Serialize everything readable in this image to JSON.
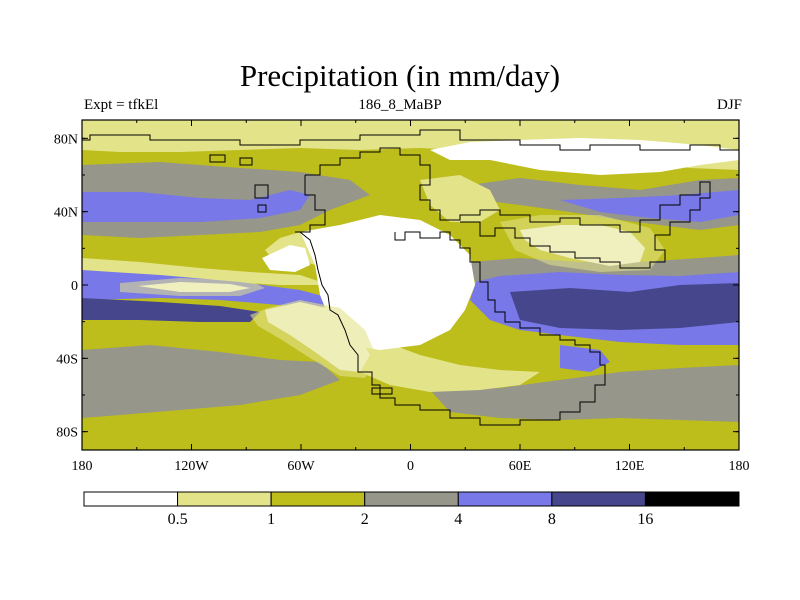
{
  "title": "Precipitation (in mm/day)",
  "subtitle_left": "Expt = tfkEl",
  "subtitle_center": "186_8_MaBP",
  "subtitle_right": "DJF",
  "map": {
    "lon_ticks": [
      "180",
      "120W",
      "60W",
      "0",
      "60E",
      "120E",
      "180"
    ],
    "lat_ticks": [
      "80N",
      "40N",
      "0",
      "40S",
      "80S"
    ]
  },
  "colorbar": {
    "levels": [
      "0.5",
      "1",
      "2",
      "4",
      "8",
      "16"
    ],
    "colors": [
      "#ffffff",
      "#e3e38a",
      "#bdbd1c",
      "#96968a",
      "#7878e8",
      "#46468c",
      "#000000"
    ]
  },
  "palette": {
    "white": "#ffffff",
    "light_yellow": "#e3e38a",
    "olive": "#bdbd1c",
    "gray": "#96968a",
    "periwinkle": "#7878e8",
    "navy": "#46468c",
    "black": "#000000"
  }
}
